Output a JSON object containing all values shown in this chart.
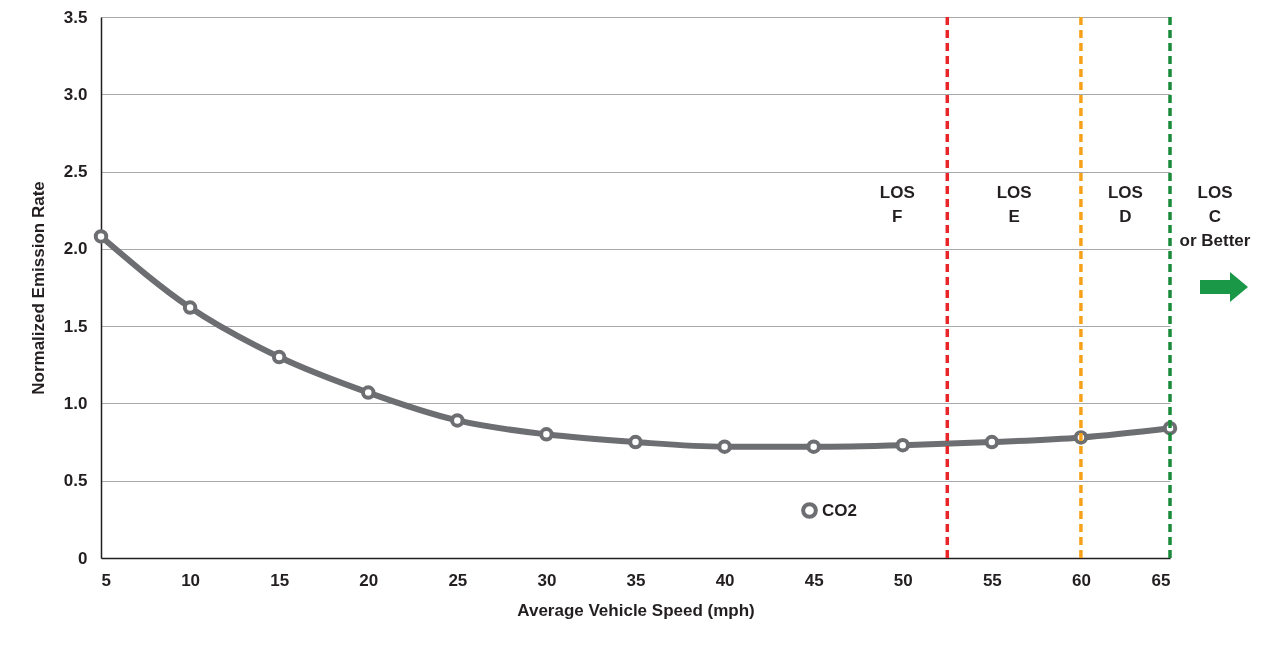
{
  "chart_data": {
    "type": "line",
    "xlabel": "Average Vehicle Speed (mph)",
    "ylabel": "Normalized Emission Rate",
    "x": [
      5,
      10,
      15,
      20,
      25,
      30,
      35,
      40,
      45,
      50,
      55,
      60,
      65
    ],
    "series": [
      {
        "name": "CO2",
        "color": "#6d6e71",
        "values": [
          2.08,
          1.62,
          1.3,
          1.07,
          0.89,
          0.8,
          0.75,
          0.72,
          0.72,
          0.73,
          0.75,
          0.78,
          0.84
        ]
      }
    ],
    "xlim": [
      5,
      65
    ],
    "xticks": [
      5,
      10,
      15,
      20,
      25,
      30,
      35,
      40,
      45,
      50,
      55,
      60,
      65
    ],
    "ylim": [
      0,
      3.5
    ],
    "yticks": [
      0,
      0.5,
      {
        "value": 1,
        "label": "1.0"
      },
      1.5,
      {
        "value": 2,
        "label": "2.0"
      },
      2.5,
      {
        "value": 3,
        "label": "3.0"
      },
      3.5
    ],
    "grid": "y",
    "legend": "bottom",
    "marker": "circle",
    "line_style": "solid",
    "ref_lines": [
      {
        "axis": "x",
        "value": 52.5,
        "color": "#e8262a",
        "line_style": "dashed"
      },
      {
        "axis": "x",
        "value": 60,
        "color": "#f7a11a",
        "line_style": "dashed"
      },
      {
        "axis": "x",
        "value": 65,
        "color": "#1a8a3a",
        "line_style": "dashed"
      }
    ],
    "annotations": [
      "LOS\nF",
      "LOS\nE",
      "LOS\nD",
      "LOS\nC\nor Better"
    ]
  }
}
